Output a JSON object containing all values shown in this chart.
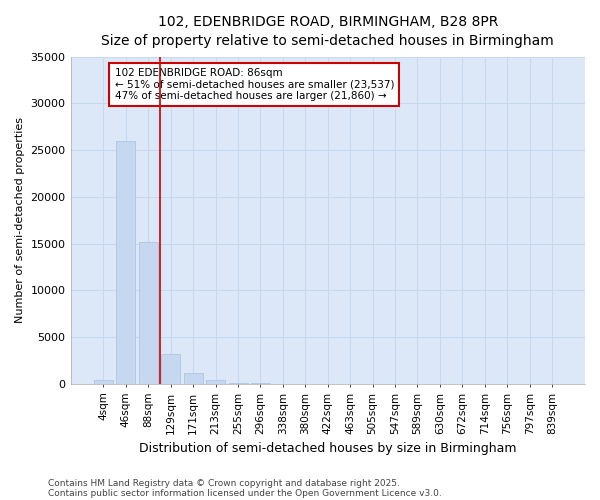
{
  "title1": "102, EDENBRIDGE ROAD, BIRMINGHAM, B28 8PR",
  "title2": "Size of property relative to semi-detached houses in Birmingham",
  "xlabel": "Distribution of semi-detached houses by size in Birmingham",
  "ylabel": "Number of semi-detached properties",
  "categories": [
    "4sqm",
    "46sqm",
    "88sqm",
    "129sqm",
    "171sqm",
    "213sqm",
    "255sqm",
    "296sqm",
    "338sqm",
    "380sqm",
    "422sqm",
    "463sqm",
    "505sqm",
    "547sqm",
    "589sqm",
    "630sqm",
    "672sqm",
    "714sqm",
    "756sqm",
    "797sqm",
    "839sqm"
  ],
  "values": [
    400,
    26000,
    15200,
    3200,
    1200,
    400,
    100,
    50,
    10,
    5,
    2,
    1,
    0,
    0,
    0,
    0,
    0,
    0,
    0,
    0,
    0
  ],
  "bar_color": "#c5d8f0",
  "bar_edge_color": "#a8c0e0",
  "grid_color": "#c8d8f0",
  "plot_bg_color": "#dce8f8",
  "fig_bg_color": "#ffffff",
  "vline_color": "#cc0000",
  "vline_x": 2.5,
  "annotation_text": "102 EDENBRIDGE ROAD: 86sqm\n← 51% of semi-detached houses are smaller (23,537)\n47% of semi-detached houses are larger (21,860) →",
  "annotation_box_color": "#ffffff",
  "annotation_box_edge": "#cc0000",
  "ylim": [
    0,
    35000
  ],
  "yticks": [
    0,
    5000,
    10000,
    15000,
    20000,
    25000,
    30000,
    35000
  ],
  "footnote1": "Contains HM Land Registry data © Crown copyright and database right 2025.",
  "footnote2": "Contains public sector information licensed under the Open Government Licence v3.0."
}
